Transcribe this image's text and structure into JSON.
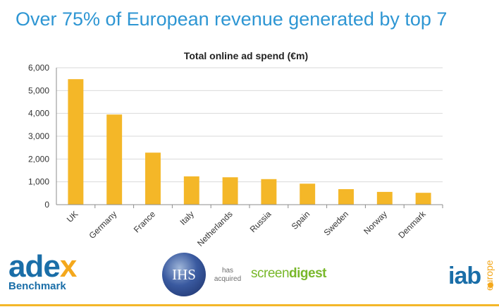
{
  "slide": {
    "headline": "Over 75% of European revenue generated by top 7"
  },
  "colors": {
    "bar": "#f4b728",
    "gridline": "#d9d9d9",
    "axis": "#8c8c8c",
    "headline": "#2e96d3",
    "footer_line": "#f4b728"
  },
  "chart_data": {
    "type": "bar",
    "title": "Total online ad spend (€m)",
    "xlabel": "",
    "ylabel": "",
    "ylim": [
      0,
      6000
    ],
    "yticks": [
      0,
      1000,
      2000,
      3000,
      4000,
      5000,
      6000
    ],
    "ytick_labels": [
      "0",
      "1,000",
      "2,000",
      "3,000",
      "4,000",
      "5,000",
      "6,000"
    ],
    "grid": true,
    "categories": [
      "UK",
      "Germany",
      "France",
      "Italy",
      "Netherlands",
      "Russia",
      "Spain",
      "Sweden",
      "Norway",
      "Denmark"
    ],
    "values": [
      5500,
      3950,
      2280,
      1240,
      1200,
      1120,
      920,
      680,
      560,
      520
    ]
  },
  "logos": {
    "adex_prefix": "ade",
    "adex_x": "x",
    "adex_sub": "Benchmark",
    "ihs": "IHS",
    "acquired_line1": "has",
    "acquired_line2": "acquired",
    "screendigest_a": "screen",
    "screendigest_b": "digest",
    "iab": "iab",
    "iab_sub": "europe"
  }
}
